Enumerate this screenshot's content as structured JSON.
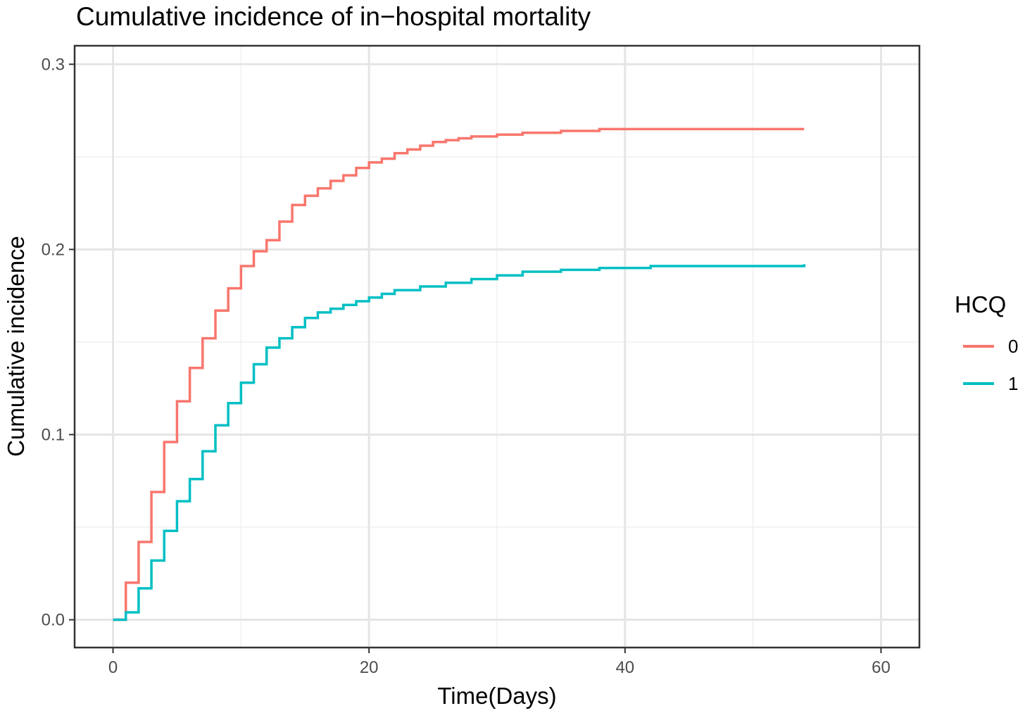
{
  "chart_data": {
    "type": "line",
    "step": true,
    "title": "Cumulative incidence of in−hospital mortality",
    "xlabel": "Time(Days)",
    "ylabel": "Cumulative incidence",
    "xlim": [
      -3,
      63
    ],
    "ylim": [
      -0.015,
      0.31
    ],
    "x_ticks": [
      0,
      20,
      40,
      60
    ],
    "x_tick_labels": [
      "0",
      "20",
      "40",
      "60"
    ],
    "y_ticks": [
      0.0,
      0.1,
      0.2,
      0.3
    ],
    "y_tick_labels": [
      "0.0",
      "0.1",
      "0.2",
      "0.3"
    ],
    "grid": true,
    "legend": {
      "title": "HCQ",
      "position": "right"
    },
    "series": [
      {
        "name": "0",
        "color": "#F8766D",
        "x": [
          0,
          1,
          2,
          3,
          4,
          5,
          6,
          7,
          8,
          9,
          10,
          11,
          12,
          13,
          14,
          15,
          16,
          17,
          18,
          19,
          20,
          21,
          22,
          23,
          24,
          25,
          26,
          27,
          28,
          30,
          32,
          35,
          38,
          54
        ],
        "y": [
          0.0,
          0.02,
          0.042,
          0.069,
          0.096,
          0.118,
          0.136,
          0.152,
          0.167,
          0.179,
          0.191,
          0.199,
          0.205,
          0.215,
          0.224,
          0.229,
          0.233,
          0.237,
          0.24,
          0.244,
          0.247,
          0.249,
          0.252,
          0.254,
          0.256,
          0.258,
          0.259,
          0.26,
          0.261,
          0.262,
          0.263,
          0.264,
          0.265,
          0.265
        ]
      },
      {
        "name": "1",
        "color": "#00BFC4",
        "x": [
          0,
          1,
          2,
          3,
          4,
          5,
          6,
          7,
          8,
          9,
          10,
          11,
          12,
          13,
          14,
          15,
          16,
          17,
          18,
          19,
          20,
          21,
          22,
          24,
          26,
          28,
          30,
          32,
          35,
          38,
          42,
          54
        ],
        "y": [
          0.0,
          0.004,
          0.017,
          0.032,
          0.048,
          0.064,
          0.076,
          0.091,
          0.105,
          0.117,
          0.128,
          0.138,
          0.147,
          0.152,
          0.158,
          0.163,
          0.166,
          0.168,
          0.17,
          0.172,
          0.174,
          0.176,
          0.178,
          0.18,
          0.182,
          0.184,
          0.186,
          0.188,
          0.189,
          0.19,
          0.191,
          0.192
        ]
      }
    ]
  }
}
